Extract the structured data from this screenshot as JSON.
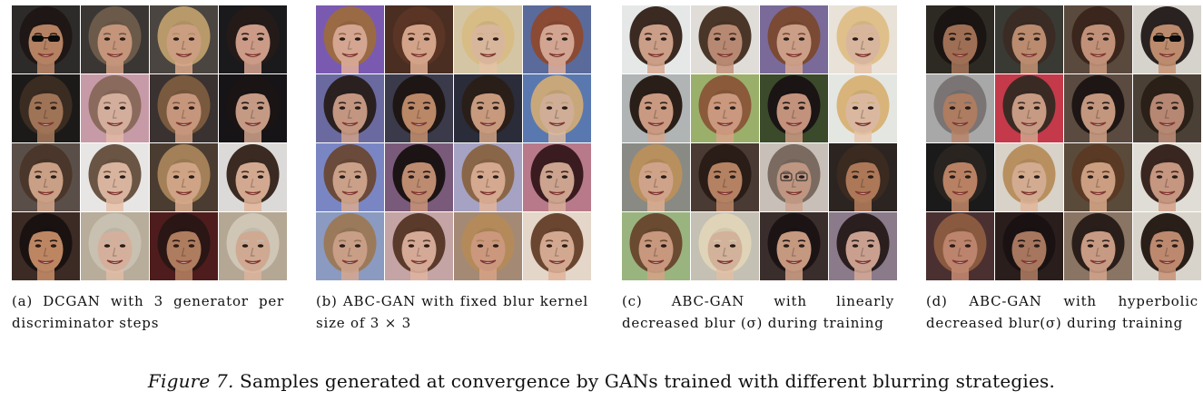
{
  "panels": [
    {
      "id": "a",
      "caption": "(a) DCGAN with 3 generator per discriminator steps",
      "tiles": [
        {
          "bg": "#2d2a2a",
          "hair": "#1e1715",
          "skin": "#c08a6a",
          "accessory": "sunglasses"
        },
        {
          "bg": "#3a3634",
          "hair": "#6b5a4a",
          "skin": "#d19f83",
          "accessory": "none"
        },
        {
          "bg": "#4a4540",
          "hair": "#b89a6a",
          "skin": "#d8a88a",
          "accessory": "none"
        },
        {
          "bg": "#1a1a1c",
          "hair": "#241b19",
          "skin": "#d8a590",
          "accessory": "none"
        },
        {
          "bg": "#1c1a18",
          "hair": "#3b2c22",
          "skin": "#a97b5c",
          "accessory": "none"
        },
        {
          "bg": "#c79aa8",
          "hair": "#8a6a5c",
          "skin": "#e2b9a6",
          "accessory": "none"
        },
        {
          "bg": "#3a3230",
          "hair": "#7a5a3e",
          "skin": "#d3a084",
          "accessory": "none"
        },
        {
          "bg": "#161416",
          "hair": "#1b1414",
          "skin": "#d2a48e",
          "accessory": "none"
        },
        {
          "bg": "#5a4e48",
          "hair": "#4a362a",
          "skin": "#d6a98e",
          "accessory": "none"
        },
        {
          "bg": "#e8e6e4",
          "hair": "#6a5444",
          "skin": "#e6c0a8",
          "accessory": "none"
        },
        {
          "bg": "#4a3c30",
          "hair": "#a38058",
          "skin": "#dcae8e",
          "accessory": "none"
        },
        {
          "bg": "#dcdad8",
          "hair": "#3a2a22",
          "skin": "#e0b49a",
          "accessory": "none"
        },
        {
          "bg": "#3c2a24",
          "hair": "#1a1210",
          "skin": "#c98f6a",
          "accessory": "none"
        },
        {
          "bg": "#b7ad9a",
          "hair": "#c8c0b0",
          "skin": "#e2bca6",
          "accessory": "none"
        },
        {
          "bg": "#4e1c1c",
          "hair": "#2a1614",
          "skin": "#b98464",
          "accessory": "none"
        },
        {
          "bg": "#b4a794",
          "hair": "#cfc6b6",
          "skin": "#dcb49c",
          "accessory": "none"
        }
      ]
    },
    {
      "id": "b",
      "caption": "(b) ABC-GAN with fixed blur kernel size of 3 × 3",
      "tiles": [
        {
          "bg": "#7a5ab0",
          "hair": "#9a6a44",
          "skin": "#e2b09a",
          "accessory": "none"
        },
        {
          "bg": "#4a2e22",
          "hair": "#5a3424",
          "skin": "#e0ae92",
          "accessory": "none"
        },
        {
          "bg": "#d4c6a4",
          "hair": "#d8bc86",
          "skin": "#e6c2a6",
          "accessory": "none"
        },
        {
          "bg": "#5a6a9a",
          "hair": "#8a4a34",
          "skin": "#e0b09c",
          "accessory": "none"
        },
        {
          "bg": "#6a6aa0",
          "hair": "#2a2020",
          "skin": "#cfa08a",
          "accessory": "none"
        },
        {
          "bg": "#3a3a4a",
          "hair": "#1e1614",
          "skin": "#c6906e",
          "accessory": "none"
        },
        {
          "bg": "#2a2c3a",
          "hair": "#2a1e18",
          "skin": "#d4a486",
          "accessory": "none"
        },
        {
          "bg": "#5a78b0",
          "hair": "#c8a87a",
          "skin": "#dcb8a0",
          "accessory": "none"
        },
        {
          "bg": "#7a86c4",
          "hair": "#6a4a3a",
          "skin": "#d8aa92",
          "accessory": "none"
        },
        {
          "bg": "#7a5a7a",
          "hair": "#1c1414",
          "skin": "#c99478",
          "accessory": "none"
        },
        {
          "bg": "#a6a2c4",
          "hair": "#8a6648",
          "skin": "#e2b49a",
          "accessory": "none"
        },
        {
          "bg": "#b87a8a",
          "hair": "#3a1c20",
          "skin": "#d8ae98",
          "accessory": "none"
        },
        {
          "bg": "#8a9ac0",
          "hair": "#9a7a5a",
          "skin": "#d6a890",
          "accessory": "none"
        },
        {
          "bg": "#c4a4a4",
          "hair": "#5a3a2a",
          "skin": "#e2b4a0",
          "accessory": "none"
        },
        {
          "bg": "#a48a74",
          "hair": "#b48a5a",
          "skin": "#d8a286",
          "accessory": "none"
        },
        {
          "bg": "#e4d6c8",
          "hair": "#6a4630",
          "skin": "#e0b49a",
          "accessory": "none"
        }
      ]
    },
    {
      "id": "c",
      "caption": "(c) ABC-GAN with linearly decreased blur (σ) during training",
      "tiles": [
        {
          "bg": "#e6e8e8",
          "hair": "#3a2a22",
          "skin": "#d8a890",
          "accessory": "none"
        },
        {
          "bg": "#e0ddd8",
          "hair": "#4a3628",
          "skin": "#c4927a",
          "accessory": "none"
        },
        {
          "bg": "#7a6a9a",
          "hair": "#7a4a34",
          "skin": "#d8a890",
          "accessory": "none"
        },
        {
          "bg": "#e8e2d8",
          "hair": "#e0c08a",
          "skin": "#e6c2a8",
          "accessory": "none"
        },
        {
          "bg": "#b0b4b4",
          "hair": "#2a1e18",
          "skin": "#d6a48a",
          "accessory": "none"
        },
        {
          "bg": "#9ab06a",
          "hair": "#8a5a3a",
          "skin": "#d6a286",
          "accessory": "none"
        },
        {
          "bg": "#3a4a2a",
          "hair": "#1a1414",
          "skin": "#cf9c84",
          "accessory": "none"
        },
        {
          "bg": "#e4e6e2",
          "hair": "#d8b47a",
          "skin": "#e8c4aa",
          "accessory": "none"
        },
        {
          "bg": "#8a8a84",
          "hair": "#b8905e",
          "skin": "#dcae92",
          "accessory": "none"
        },
        {
          "bg": "#4a3a34",
          "hair": "#2a1c16",
          "skin": "#c08a6a",
          "accessory": "none"
        },
        {
          "bg": "#c8c0b8",
          "hair": "#7a6a60",
          "skin": "#caa08a",
          "accessory": "glasses"
        },
        {
          "bg": "#2c2420",
          "hair": "#3a2a20",
          "skin": "#b8805e",
          "accessory": "none"
        },
        {
          "bg": "#9ab480",
          "hair": "#6a4a30",
          "skin": "#d4a286",
          "accessory": "none"
        },
        {
          "bg": "#c4c0b4",
          "hair": "#e0d4b8",
          "skin": "#e0bea4",
          "accessory": "none"
        },
        {
          "bg": "#3a2e2c",
          "hair": "#1c1414",
          "skin": "#d2a288",
          "accessory": "none"
        },
        {
          "bg": "#8a7a8a",
          "hair": "#2a1e1e",
          "skin": "#d6aa98",
          "accessory": "none"
        }
      ]
    },
    {
      "id": "d",
      "caption": "(d) ABC-GAN with hyperbolic decreased blur(σ) during training",
      "tiles": [
        {
          "bg": "#2c2a22",
          "hair": "#1a1412",
          "skin": "#a8765a",
          "accessory": "none"
        },
        {
          "bg": "#3a3a34",
          "hair": "#3a2c24",
          "skin": "#c69476",
          "accessory": "none"
        },
        {
          "bg": "#5a4a3e",
          "hair": "#3a261c",
          "skin": "#cc9a80",
          "accessory": "none"
        },
        {
          "bg": "#d6d2cc",
          "hair": "#2a2220",
          "skin": "#c89474",
          "accessory": "sunglasses"
        },
        {
          "bg": "#a8a8a8",
          "hair": "#7a7474",
          "skin": "#b88468",
          "accessory": "none"
        },
        {
          "bg": "#c43a4a",
          "hair": "#3a2a24",
          "skin": "#d4a48c",
          "accessory": "none"
        },
        {
          "bg": "#5a4a40",
          "hair": "#1e1614",
          "skin": "#d0a086",
          "accessory": "none"
        },
        {
          "bg": "#4a4036",
          "hair": "#2a2018",
          "skin": "#c2907a",
          "accessory": "none"
        },
        {
          "bg": "#1a1a1a",
          "hair": "#2a2420",
          "skin": "#c48a6a",
          "accessory": "none"
        },
        {
          "bg": "#d8d2c8",
          "hair": "#b89060",
          "skin": "#e0b69a",
          "accessory": "none"
        },
        {
          "bg": "#5a4a3a",
          "hair": "#5a3a24",
          "skin": "#d8a88a",
          "accessory": "none"
        },
        {
          "bg": "#e0ddd6",
          "hair": "#3a2620",
          "skin": "#d2a088",
          "accessory": "none"
        },
        {
          "bg": "#4a3030",
          "hair": "#8a5a40",
          "skin": "#c88c74",
          "accessory": "none"
        },
        {
          "bg": "#2a1e1c",
          "hair": "#1a1212",
          "skin": "#b27e64",
          "accessory": "none"
        },
        {
          "bg": "#8a7464",
          "hair": "#2a1e1a",
          "skin": "#d4a48c",
          "accessory": "none"
        },
        {
          "bg": "#d8d4cc",
          "hair": "#2a1e18",
          "skin": "#c89276",
          "accessory": "none"
        }
      ]
    }
  ],
  "figure_caption": {
    "label": "Figure 7.",
    "text": " Samples generated at convergence by GANs trained with different blurring strategies."
  }
}
